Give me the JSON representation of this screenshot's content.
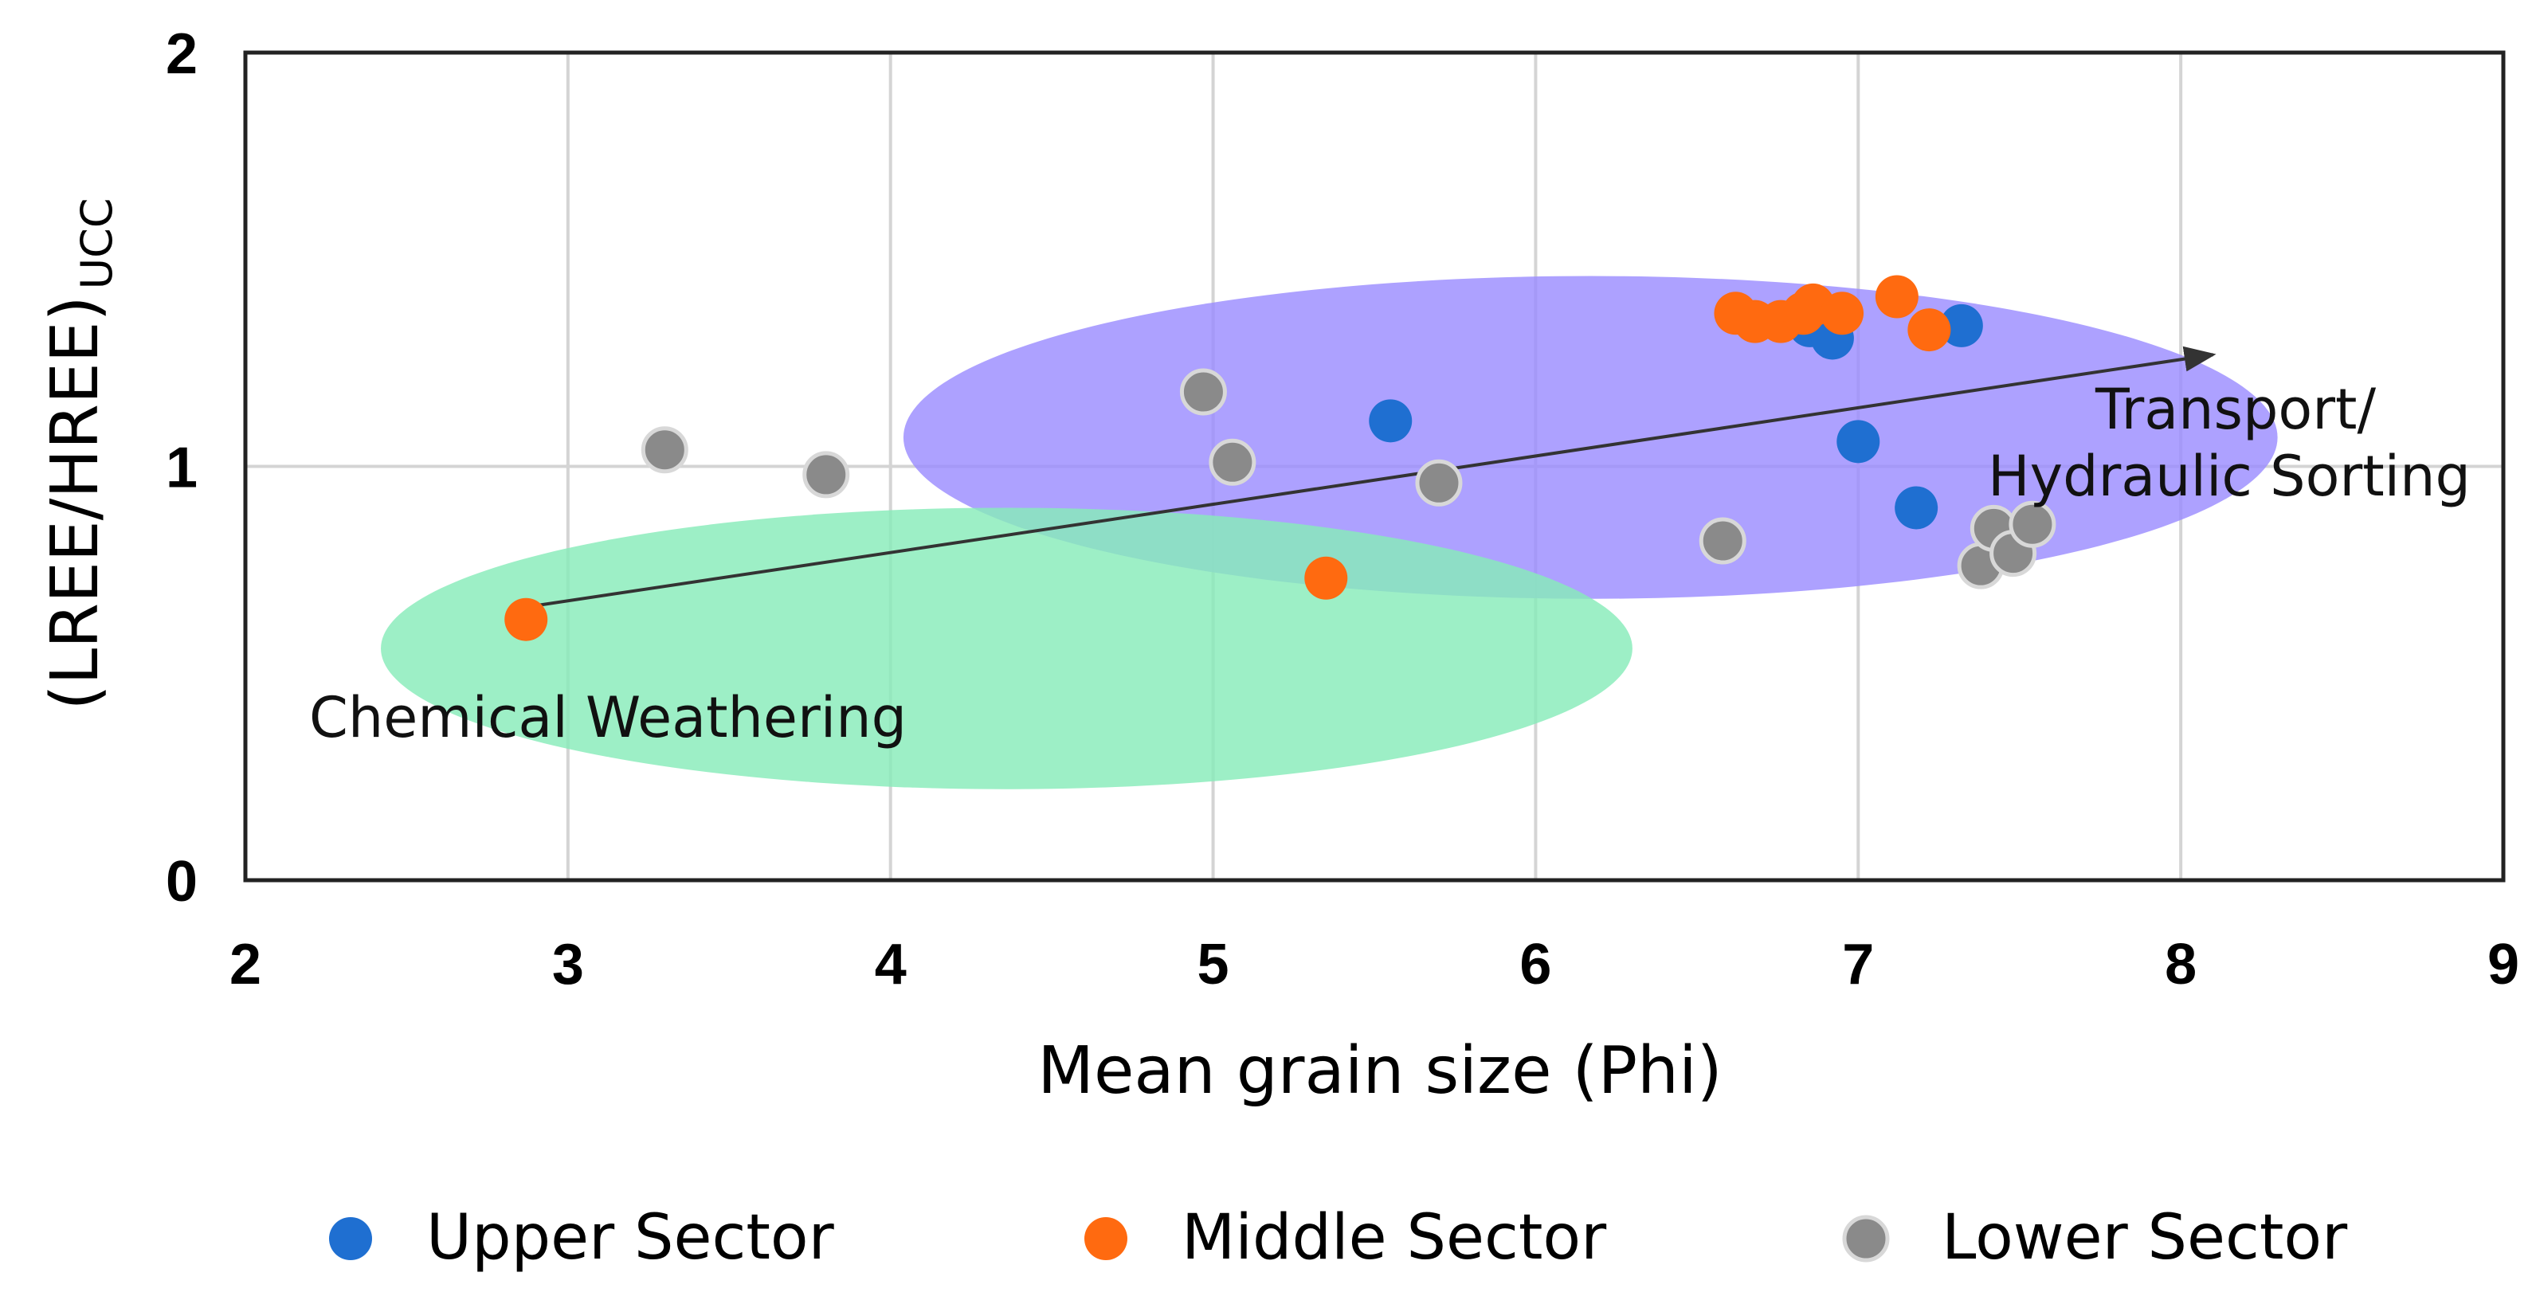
{
  "chart_data": {
    "type": "scatter",
    "title": "",
    "xlabel": "Mean grain size (Phi)",
    "ylabel_main": "(LREE/HREE)",
    "ylabel_sub": "UCC",
    "xlim": [
      2,
      9
    ],
    "ylim": [
      0,
      2
    ],
    "xticks": [
      "2",
      "3",
      "4",
      "5",
      "6",
      "7",
      "8",
      "9"
    ],
    "yticks": [
      "0",
      "1",
      "2"
    ],
    "grid": true,
    "legend_position": "bottom",
    "series": [
      {
        "name": "Upper Sector",
        "color": "#1f6fd1",
        "points": [
          {
            "x": 5.55,
            "y": 1.11
          },
          {
            "x": 6.85,
            "y": 1.34
          },
          {
            "x": 6.92,
            "y": 1.31
          },
          {
            "x": 7.0,
            "y": 1.06
          },
          {
            "x": 7.18,
            "y": 0.9
          },
          {
            "x": 7.32,
            "y": 1.34
          }
        ]
      },
      {
        "name": "Middle Sector",
        "color": "#ff6a10",
        "points": [
          {
            "x": 2.87,
            "y": 0.63
          },
          {
            "x": 5.35,
            "y": 0.73
          },
          {
            "x": 6.62,
            "y": 1.37
          },
          {
            "x": 6.68,
            "y": 1.35
          },
          {
            "x": 6.76,
            "y": 1.35
          },
          {
            "x": 6.83,
            "y": 1.37
          },
          {
            "x": 6.86,
            "y": 1.39
          },
          {
            "x": 6.95,
            "y": 1.37
          },
          {
            "x": 7.12,
            "y": 1.41
          },
          {
            "x": 7.22,
            "y": 1.33
          }
        ]
      },
      {
        "name": "Lower Sector",
        "color": "#8a8a8a",
        "points": [
          {
            "x": 3.3,
            "y": 1.04
          },
          {
            "x": 3.8,
            "y": 0.98
          },
          {
            "x": 4.97,
            "y": 1.18
          },
          {
            "x": 5.06,
            "y": 1.01
          },
          {
            "x": 5.7,
            "y": 0.96
          },
          {
            "x": 6.58,
            "y": 0.82
          },
          {
            "x": 7.38,
            "y": 0.76
          },
          {
            "x": 7.42,
            "y": 0.85
          },
          {
            "x": 7.48,
            "y": 0.79
          },
          {
            "x": 7.54,
            "y": 0.86
          }
        ]
      }
    ],
    "regions": [
      {
        "name": "Transport/Hydraulic Sorting field",
        "color": "#9b8cff",
        "cx": 6.17,
        "cy": 1.07,
        "rx": 2.13,
        "ry": 0.39
      },
      {
        "name": "Chemical Weathering field",
        "color": "#88ebb9",
        "cx": 4.36,
        "cy": 0.56,
        "rx": 1.94,
        "ry": 0.34
      }
    ],
    "trend_arrow": {
      "from": {
        "x": 2.87,
        "y": 0.66
      },
      "to": {
        "x": 8.1,
        "y": 1.27
      }
    },
    "annotations": {
      "transport_line1": "Transport/",
      "transport_line2": "Hydraulic Sorting",
      "chemical": "Chemical Weathering"
    }
  }
}
